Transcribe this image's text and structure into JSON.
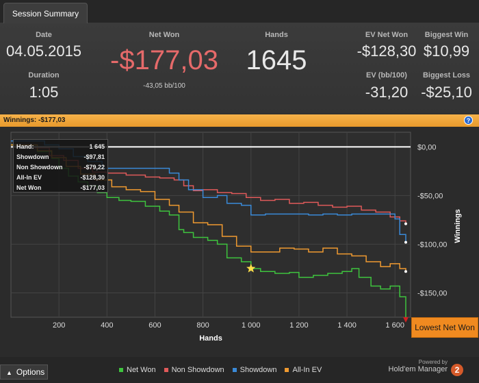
{
  "tab": {
    "label": "Session Summary"
  },
  "summary": {
    "date": {
      "label": "Date",
      "value": "04.05.2015"
    },
    "duration": {
      "label": "Duration",
      "value": "1:05"
    },
    "net_won": {
      "label": "Net Won",
      "value": "-$177,03",
      "sub": "-43,05 bb/100",
      "color": "#e66a6a"
    },
    "hands": {
      "label": "Hands",
      "value": "1645"
    },
    "ev_net_won": {
      "label": "EV Net Won",
      "value": "-$128,30"
    },
    "ev_bb100": {
      "label": "EV (bb/100)",
      "value": "-31,20"
    },
    "biggest_win": {
      "label": "Biggest Win",
      "value": "$10,99"
    },
    "biggest_loss": {
      "label": "Biggest Loss",
      "value": "-$25,10"
    }
  },
  "winnings_bar": {
    "label": "Winnings:",
    "value": "-$177,03",
    "help_icon": "question-icon"
  },
  "tooltip": {
    "rows": [
      {
        "label": "Hand:",
        "value": "1 645"
      },
      {
        "label": "Showdown",
        "value": "-$97,81"
      },
      {
        "label": "Non Showdown",
        "value": "-$79,22"
      },
      {
        "label": "All-In EV",
        "value": "-$128,30"
      },
      {
        "label": "Net Won",
        "value": "-$177,03"
      }
    ]
  },
  "lowest_button": {
    "label": "Lowest Net Won"
  },
  "footer": {
    "options_label": "Options",
    "powered_by": "Powered by",
    "product": "Hold'em Manager",
    "logo_text": "2"
  },
  "chart_data": {
    "type": "line",
    "xlabel": "Hands",
    "ylabel": "Winnings",
    "xlim": [
      0,
      1665
    ],
    "ylim": [
      -175,
      15
    ],
    "x_ticks": [
      200,
      400,
      600,
      800,
      1000,
      1200,
      1400,
      1600
    ],
    "x_tick_labels": [
      "200",
      "400",
      "600",
      "800",
      "1 000",
      "1 200",
      "1 400",
      "1 600"
    ],
    "y_ticks": [
      0,
      -50,
      -100,
      -150
    ],
    "y_tick_labels": [
      "$0,00",
      "-$50,00",
      "-$100,00",
      "-$150,00"
    ],
    "grid": true,
    "legend_position": "bottom",
    "zero_line_color": "#ffffff",
    "star_marker": {
      "x": 1000,
      "y": -125,
      "color": "#ffe04a"
    },
    "series": [
      {
        "name": "Net Won",
        "color": "#3ec43e",
        "x": [
          0,
          60,
          110,
          170,
          200,
          240,
          280,
          320,
          360,
          400,
          450,
          500,
          560,
          620,
          660,
          700,
          720,
          760,
          820,
          860,
          900,
          960,
          1000,
          1040,
          1100,
          1160,
          1200,
          1260,
          1320,
          1380,
          1420,
          1450,
          1500,
          1540,
          1580,
          1620,
          1645
        ],
        "y": [
          2,
          2,
          -5,
          -12,
          -22,
          -30,
          -36,
          -40,
          -47,
          -52,
          -55,
          -56,
          -61,
          -66,
          -70,
          -85,
          -88,
          -93,
          -96,
          -100,
          -114,
          -118,
          -125,
          -128,
          -130,
          -129,
          -134,
          -132,
          -130,
          -128,
          -125,
          -134,
          -143,
          -146,
          -143,
          -154,
          -177
        ]
      },
      {
        "name": "Non Showdown",
        "color": "#e05a5a",
        "x": [
          0,
          100,
          160,
          220,
          280,
          340,
          400,
          480,
          560,
          620,
          680,
          720,
          760,
          800,
          860,
          920,
          980,
          1040,
          1100,
          1160,
          1220,
          1280,
          1340,
          1400,
          1460,
          1520,
          1580,
          1620,
          1645
        ],
        "y": [
          0,
          -1,
          -9,
          -14,
          -22,
          -26,
          -27,
          -29,
          -31,
          -32,
          -34,
          -40,
          -45,
          -44,
          -47,
          -48,
          -52,
          -55,
          -54,
          -58,
          -57,
          -60,
          -62,
          -61,
          -65,
          -67,
          -72,
          -76,
          -79
        ]
      },
      {
        "name": "Showdown",
        "color": "#3a8ad8",
        "x": [
          0,
          100,
          140,
          200,
          260,
          320,
          380,
          440,
          520,
          600,
          660,
          700,
          740,
          800,
          860,
          900,
          960,
          1000,
          1060,
          1120,
          1180,
          1240,
          1300,
          1360,
          1420,
          1480,
          1540,
          1600,
          1620,
          1645
        ],
        "y": [
          6,
          6,
          2,
          -2,
          -10,
          -15,
          -22,
          -22,
          -22,
          -22,
          -27,
          -34,
          -44,
          -52,
          -50,
          -58,
          -60,
          -70,
          -69,
          -69,
          -69,
          -70,
          -69,
          -70,
          -69,
          -69,
          -69,
          -74,
          -90,
          -98
        ]
      },
      {
        "name": "All-In EV",
        "color": "#f09a30",
        "x": [
          0,
          60,
          110,
          170,
          230,
          290,
          350,
          420,
          480,
          540,
          600,
          660,
          700,
          760,
          820,
          880,
          940,
          1000,
          1060,
          1120,
          1180,
          1240,
          1300,
          1360,
          1420,
          1480,
          1540,
          1580,
          1620,
          1645
        ],
        "y": [
          2,
          2,
          -4,
          -11,
          -20,
          -28,
          -34,
          -41,
          -44,
          -46,
          -54,
          -60,
          -67,
          -78,
          -80,
          -92,
          -102,
          -108,
          -108,
          -104,
          -105,
          -108,
          -104,
          -110,
          -112,
          -118,
          -123,
          -120,
          -125,
          -128
        ]
      }
    ]
  }
}
